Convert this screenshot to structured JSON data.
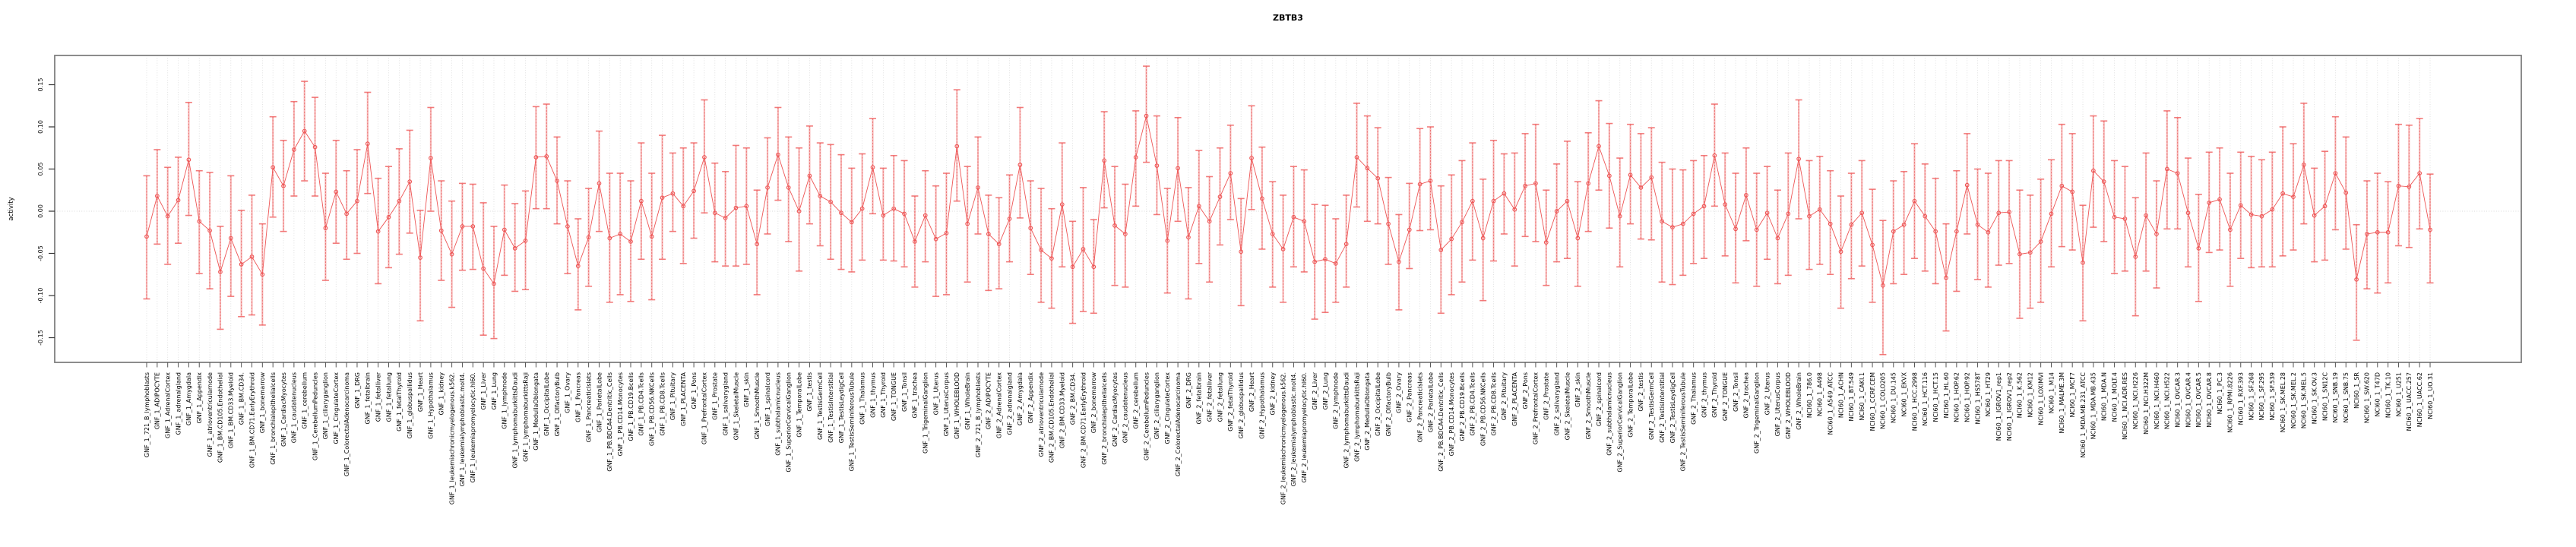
{
  "title": "ZBTB3",
  "y_axis": {
    "label": "activity",
    "ticks": [
      "0.15",
      "0.10",
      "0.05",
      "0.00",
      "-0.05",
      "-0.10",
      "-0.15"
    ],
    "tick_values": [
      0.15,
      0.1,
      0.05,
      0.0,
      -0.05,
      -0.1,
      -0.15
    ]
  },
  "colors": {
    "point": "#ee5555",
    "line": "#ee5555",
    "errorbar_pale": "rgba(244,140,140,0.60)",
    "errorbar_dash": "rgba(230,60,60,0.55)",
    "errorbar_cap": "rgba(240,100,100,0.85)",
    "frame": "#7f7f7f",
    "grid": "#d9d9d9",
    "tick": "#555555"
  },
  "chart_data": {
    "type": "scatter",
    "subtype": "points-with-error-bars-connected-by-line",
    "title": "ZBTB3",
    "xlabel": "",
    "ylabel": "activity",
    "ylim": [
      -0.185,
      0.185
    ],
    "grid": "vertical dotted gridline at each category; dotted horizontal line at y=0",
    "legend": "none",
    "n_points": 218,
    "categories": [
      "GNF_1_721_B_lymphoblasts",
      "GNF_1_ADIPOCYTE",
      "GNF_1_AdrenalCortex",
      "GNF_1_adrenalgland",
      "GNF_1_Amygdala",
      "GNF_1_Appendix",
      "GNF_1_atrioventricularnode",
      "GNF_1_BM.CD105.Endothelial",
      "GNF_1_BM.CD33.Myeloid",
      "GNF_1_BM.CD34.",
      "GNF_1_BM.CD71.EarlyErythroid",
      "GNF_1_bonemarrow",
      "GNF_1_bronchialepithelialcells",
      "GNF_1_CardiacMyocytes",
      "GNF_1_caudatenucleus",
      "GNF_1_cerebellum",
      "GNF_1_CerebellumPeduncles",
      "GNF_1_ciliaryganglion",
      "GNF_1_CingulateCortex",
      "GNF_1_ColorectalAdenocarcinoma",
      "GNF_1_DRG",
      "GNF_1_fetalbrain",
      "GNF_1_fetalliver",
      "GNF_1_fetallung",
      "GNF_1_fetalThyroid",
      "GNF_1_globuspallidus",
      "GNF_1_Heart",
      "GNF_1_Hypothalamus",
      "GNF_1_kidney",
      "GNF_1_leukemiachronicmyelogenous.k562.",
      "GNF_1_leukemialymphoblastic.molt4.",
      "GNF_1_leukemiapromyelocytic.hl60.",
      "GNF_1_Liver",
      "GNF_1_Lung",
      "GNF_1_lymphnode",
      "GNF_1_lymphomaburkittsDaudi",
      "GNF_1_lymphomaburkittsRaji",
      "GNF_1_MedullaOblongata",
      "GNF_1_OccipitalLobe",
      "GNF_1_OlfactoryBulb",
      "GNF_1_Ovary",
      "GNF_1_Pancreas",
      "GNF_1_PancreaticIslets",
      "GNF_1_ParietalLobe",
      "GNF_1_PB.BDCA4.Dentritic_Cells",
      "GNF_1_PB.CD14.Monocytes",
      "GNF_1_PB.CD19.Bcells",
      "GNF_1_PB.CD4.Tcells",
      "GNF_1_PB.CD56.NKCells",
      "GNF_1_PB.CD8.Tcells",
      "GNF_1_Pituitary",
      "GNF_1_PLACENTA",
      "GNF_1_Pons",
      "GNF_1_PrefrontalCortex",
      "GNF_1_Prostate",
      "GNF_1_salivarygland",
      "GNF_1_SkeletalMuscle",
      "GNF_1_skin",
      "GNF_1_SmoothMuscle",
      "GNF_1_spinalcord",
      "GNF_1_subthalamicnucleus",
      "GNF_1_SuperiorCervicalGanglion",
      "GNF_1_TemporalLobe",
      "GNF_1_testis",
      "GNF_1_TestisGermCell",
      "GNF_1_TestisInterstitial",
      "GNF_1_TestisLeydigCell",
      "GNF_1_TestisSeminiferousTubule",
      "GNF_1_Thalamus",
      "GNF_1_thymus",
      "GNF_1_Thyroid",
      "GNF_1_TONGUE",
      "GNF_1_Tonsil",
      "GNF_1_trachea",
      "GNF_1_TrigeminalGanglion",
      "GNF_1_Uterus",
      "GNF_1_UterusCorpus",
      "GNF_1_WHOLEBLOOD",
      "GNF_1_WholeBrain",
      "GNF_2_721_B_lymphoblasts",
      "GNF_2_ADIPOCYTE",
      "GNF_2_AdrenalCortex",
      "GNF_2_adrenalgland",
      "GNF_2_Amygdala",
      "GNF_2_Appendix",
      "GNF_2_atrioventricularnode",
      "GNF_2_BM.CD105.Endothelial",
      "GNF_2_BM.CD33.Myeloid",
      "GNF_2_BM.CD34.",
      "GNF_2_BM.CD71.EarlyErythroid",
      "GNF_2_bonemarrow",
      "GNF_2_bronchialepithelialcells",
      "GNF_2_CardiacMyocytes",
      "GNF_2_caudatenucleus",
      "GNF_2_cerebellum",
      "GNF_2_CerebellumPeduncles",
      "GNF_2_ciliaryganglion",
      "GNF_2_CingulateCortex",
      "GNF_2_ColorectalAdenocarcinoma",
      "GNF_2_DRG",
      "GNF_2_fetalbrain",
      "GNF_2_fetalliver",
      "GNF_2_fetallung",
      "GNF_2_fetalThyroid",
      "GNF_2_globuspallidus",
      "GNF_2_Heart",
      "GNF_2_Hypothalamus",
      "GNF_2_kidney",
      "GNF_2_leukemiachronicmyelogenous.k562.",
      "GNF_2_leukemialymphoblastic.molt4.",
      "GNF_2_leukemiapromyelocytic.hl60.",
      "GNF_2_Liver",
      "GNF_2_Lung",
      "GNF_2_lymphnode",
      "GNF_2_lymphomaburkittsDaudi",
      "GNF_2_lymphomaburkittsRaji",
      "GNF_2_MedullaOblongata",
      "GNF_2_OccipitalLobe",
      "GNF_2_OlfactoryBulb",
      "GNF_2_Ovary",
      "GNF_2_Pancreas",
      "GNF_2_PancreaticIslets",
      "GNF_2_ParietalLobe",
      "GNF_2_PB.BDCA4.Dentritic_Cells",
      "GNF_2_PB.CD14.Monocytes",
      "GNF_2_PB.CD19.Bcells",
      "GNF_2_PB.CD4.Tcells",
      "GNF_2_PB.CD56.NKCells",
      "GNF_2_PB.CD8.Tcells",
      "GNF_2_Pituitary",
      "GNF_2_PLACENTA",
      "GNF_2_Pons",
      "GNF_2_PrefrontalCortex",
      "GNF_2_Prostate",
      "GNF_2_salivarygland",
      "GNF_2_SkeletalMuscle",
      "GNF_2_skin",
      "GNF_2_SmoothMuscle",
      "GNF_2_spinalcord",
      "GNF_2_subthalamicnucleus",
      "GNF_2_SuperiorCervicalGanglion",
      "GNF_2_TemporalLobe",
      "GNF_2_testis",
      "GNF_2_TestisGermCell",
      "GNF_2_TestisInterstitial",
      "GNF_2_TestisLeydigCell",
      "GNF_2_TestisSeminiferousTubule",
      "GNF_2_Thalamus",
      "GNF_2_thymus",
      "GNF_2_Thyroid",
      "GNF_2_TONGUE",
      "GNF_2_Tonsil",
      "GNF_2_trachea",
      "GNF_2_TrigeminalGanglion",
      "GNF_2_Uterus",
      "GNF_2_UterusCorpus",
      "GNF_2_WHOLEBLOOD",
      "GNF_2_WholeBrain",
      "NCI60_1_786.0",
      "NCI60_1_A498",
      "NCI60_1_A549_ATCC",
      "NCI60_1_ACHN",
      "NCI60_1_BT.549",
      "NCI60_1_CAKI.1",
      "NCI60_1_CCRF.CEM",
      "NCI60_1_COLO205",
      "NCI60_1_DU.145",
      "NCI60_1_EKVX",
      "NCI60_1_HCC.2998",
      "NCI60_1_HCT.116",
      "NCI60_1_HCT.15",
      "NCI60_1_HL.60",
      "NCI60_1_HOP.62",
      "NCI60_1_HOP.92",
      "NCI60_1_HS578T",
      "NCI60_1_HT29",
      "NCI60_1_IGROV1_rep1",
      "NCI60_1_IGROV1_rep2",
      "NCI60_1_K.562",
      "NCI60_1_KM12",
      "NCI60_1_LOXIMVI",
      "NCI60_1_M14",
      "NCI60_1_MALME.3M",
      "NCI60_1_MCF7",
      "NCI60_1_MDA.MB.231_ATCC",
      "NCI60_1_MDA.MB.435",
      "NCI60_1_MDA.N",
      "NCI60_1_MOLT.4",
      "NCI60_1_NCI.ADR.RES",
      "NCI60_1_NCI.H226",
      "NCI60_1_NCI.H322M",
      "NCI60_1_NCI.H460",
      "NCI60_1_NCI.H522",
      "NCI60_1_OVCAR.3",
      "NCI60_1_OVCAR.4",
      "NCI60_1_OVCAR.5",
      "NCI60_1_OVCAR.8",
      "NCI60_1_PC.3",
      "NCI60_1_RPMI.8226",
      "NCI60_1_RXF.393",
      "NCI60_1_SF.268",
      "NCI60_1_SF.295",
      "NCI60_1_SF.539",
      "NCI60_1_SK.MEL.28",
      "NCI60_1_SK.MEL.2",
      "NCI60_1_SK.MEL.5",
      "NCI60_1_SK.OV.3",
      "NCI60_1_SN12C",
      "NCI60_1_SNB.19",
      "NCI60_1_SNB.75",
      "NCI60_1_SR",
      "NCI60_1_SW.620",
      "NCI60_1_T47D",
      "NCI60_1_TK.10",
      "NCI60_1_U251",
      "NCI60_1_UACC.257",
      "NCI60_1_UACC.62",
      "NCI60_1_UO.31"
    ],
    "series": [
      {
        "name": "activity",
        "values": [
          -0.03,
          0.018,
          -0.006,
          0.013,
          0.061,
          -0.012,
          -0.023,
          -0.072,
          -0.032,
          -0.063,
          -0.054,
          -0.075,
          0.052,
          0.03,
          0.073,
          0.095,
          0.076,
          -0.02,
          0.023,
          -0.003,
          0.012,
          0.08,
          -0.024,
          -0.007,
          0.012,
          0.035,
          -0.055,
          0.063,
          -0.023,
          -0.051,
          -0.018,
          -0.018,
          -0.068,
          -0.086,
          -0.022,
          -0.044,
          -0.035,
          0.064,
          0.065,
          0.036,
          -0.018,
          -0.065,
          -0.031,
          0.033,
          -0.032,
          -0.027,
          -0.036,
          0.012,
          -0.03,
          0.016,
          0.021,
          0.006,
          0.024,
          0.064,
          -0.002,
          -0.008,
          0.004,
          0.006,
          -0.039,
          0.028,
          0.067,
          0.028,
          0.0,
          0.042,
          0.018,
          0.011,
          -0.002,
          -0.013,
          0.003,
          0.052,
          -0.005,
          0.003,
          -0.003,
          -0.036,
          -0.005,
          -0.033,
          -0.026,
          0.077,
          -0.015,
          0.028,
          -0.027,
          -0.039,
          -0.009,
          0.055,
          -0.02,
          -0.046,
          -0.056,
          0.008,
          -0.066,
          -0.045,
          -0.066,
          0.06,
          -0.017,
          -0.027,
          0.064,
          0.113,
          0.054,
          -0.035,
          0.051,
          -0.031,
          0.006,
          -0.012,
          0.017,
          0.045,
          -0.048,
          0.063,
          0.015,
          -0.027,
          -0.045,
          -0.007,
          -0.012,
          -0.06,
          -0.057,
          -0.062,
          -0.039,
          0.064,
          0.051,
          0.039,
          -0.015,
          -0.06,
          -0.022,
          0.032,
          0.036,
          -0.046,
          -0.033,
          -0.013,
          0.012,
          -0.032,
          0.012,
          0.021,
          0.002,
          0.03,
          0.033,
          -0.037,
          0.0,
          0.012,
          -0.032,
          0.033,
          0.077,
          0.042,
          -0.006,
          0.043,
          0.028,
          0.04,
          -0.012,
          -0.019,
          -0.015,
          -0.003,
          0.006,
          0.066,
          0.008,
          -0.021,
          0.019,
          -0.022,
          -0.002,
          -0.032,
          -0.003,
          0.062,
          -0.006,
          0.002,
          -0.015,
          -0.048,
          -0.016,
          -0.002,
          -0.04,
          -0.088,
          -0.024,
          -0.016,
          0.012,
          -0.006,
          -0.024,
          -0.079,
          -0.024,
          0.031,
          -0.016,
          -0.025,
          -0.002,
          -0.001,
          -0.051,
          -0.049,
          -0.036,
          -0.003,
          0.03,
          0.023,
          -0.061,
          0.048,
          0.035,
          -0.007,
          -0.009,
          -0.054,
          -0.005,
          -0.027,
          0.05,
          0.045,
          -0.002,
          -0.044,
          0.01,
          0.014,
          -0.022,
          0.007,
          -0.004,
          -0.006,
          0.002,
          0.021,
          0.017,
          0.055,
          -0.005,
          0.006,
          0.045,
          0.022,
          -0.081,
          -0.027,
          -0.025,
          -0.025,
          0.03,
          0.029,
          0.045,
          -0.022
        ],
        "lower": [
          -0.104,
          -0.039,
          -0.063,
          -0.038,
          -0.005,
          -0.074,
          -0.092,
          -0.14,
          -0.101,
          -0.125,
          -0.123,
          -0.135,
          -0.007,
          -0.024,
          0.018,
          0.036,
          0.018,
          -0.082,
          -0.038,
          -0.057,
          -0.05,
          0.021,
          -0.086,
          -0.067,
          -0.051,
          -0.026,
          -0.13,
          0.0,
          -0.082,
          -0.114,
          -0.07,
          -0.069,
          -0.147,
          -0.151,
          -0.076,
          -0.095,
          -0.093,
          0.003,
          0.003,
          -0.015,
          -0.074,
          -0.117,
          -0.089,
          -0.024,
          -0.108,
          -0.099,
          -0.107,
          -0.057,
          -0.105,
          -0.057,
          -0.024,
          -0.062,
          -0.032,
          -0.002,
          -0.06,
          -0.065,
          -0.065,
          -0.063,
          -0.099,
          -0.027,
          0.013,
          -0.036,
          -0.071,
          -0.015,
          -0.041,
          -0.057,
          -0.069,
          -0.072,
          -0.058,
          -0.003,
          -0.058,
          -0.059,
          -0.066,
          -0.09,
          -0.06,
          -0.101,
          -0.099,
          0.012,
          -0.084,
          -0.027,
          -0.094,
          -0.092,
          -0.06,
          -0.008,
          -0.075,
          -0.108,
          -0.115,
          -0.066,
          -0.133,
          -0.119,
          -0.121,
          0.004,
          -0.088,
          -0.09,
          0.006,
          0.058,
          -0.004,
          -0.097,
          -0.012,
          -0.104,
          -0.062,
          -0.084,
          -0.04,
          -0.01,
          -0.112,
          0.002,
          -0.045,
          -0.09,
          -0.108,
          -0.066,
          -0.072,
          -0.128,
          -0.12,
          -0.108,
          -0.09,
          0.005,
          -0.012,
          -0.015,
          -0.063,
          -0.117,
          -0.068,
          -0.023,
          -0.022,
          -0.121,
          -0.099,
          -0.084,
          -0.058,
          -0.106,
          -0.059,
          -0.027,
          -0.065,
          -0.03,
          -0.036,
          -0.088,
          -0.06,
          -0.056,
          -0.089,
          -0.024,
          0.025,
          -0.02,
          -0.066,
          -0.015,
          -0.033,
          -0.034,
          -0.084,
          -0.087,
          -0.076,
          -0.062,
          -0.056,
          0.006,
          -0.053,
          -0.085,
          -0.035,
          -0.089,
          -0.057,
          -0.086,
          -0.076,
          -0.009,
          -0.069,
          -0.063,
          -0.075,
          -0.115,
          -0.08,
          -0.065,
          -0.108,
          -0.17,
          -0.086,
          -0.075,
          -0.056,
          -0.071,
          -0.086,
          -0.142,
          -0.095,
          -0.027,
          -0.081,
          -0.09,
          -0.064,
          -0.062,
          -0.127,
          -0.115,
          -0.108,
          -0.066,
          -0.042,
          -0.046,
          -0.13,
          -0.019,
          -0.036,
          -0.074,
          -0.071,
          -0.124,
          -0.071,
          -0.091,
          -0.021,
          -0.021,
          -0.066,
          -0.107,
          -0.049,
          -0.046,
          -0.089,
          -0.056,
          -0.067,
          -0.066,
          -0.066,
          -0.053,
          -0.046,
          -0.015,
          -0.06,
          -0.058,
          -0.022,
          -0.045,
          -0.153,
          -0.092,
          -0.097,
          -0.085,
          -0.041,
          -0.043,
          -0.021,
          -0.085
        ],
        "upper": [
          0.042,
          0.073,
          0.052,
          0.064,
          0.129,
          0.048,
          0.046,
          -0.018,
          0.042,
          0.001,
          0.019,
          -0.015,
          0.112,
          0.084,
          0.13,
          0.154,
          0.135,
          0.045,
          0.084,
          0.048,
          0.073,
          0.141,
          0.039,
          0.053,
          0.074,
          0.096,
          0.001,
          0.123,
          0.036,
          0.012,
          0.033,
          0.032,
          0.01,
          -0.018,
          0.031,
          0.009,
          0.024,
          0.124,
          0.127,
          0.088,
          0.036,
          -0.009,
          0.027,
          0.095,
          0.045,
          0.045,
          0.036,
          0.081,
          0.045,
          0.09,
          0.069,
          0.075,
          0.081,
          0.132,
          0.057,
          0.047,
          0.078,
          0.075,
          0.025,
          0.087,
          0.123,
          0.088,
          0.075,
          0.101,
          0.081,
          0.079,
          0.067,
          0.051,
          0.068,
          0.11,
          0.051,
          0.066,
          0.06,
          0.018,
          0.048,
          0.03,
          0.045,
          0.144,
          0.053,
          0.088,
          0.019,
          0.016,
          0.043,
          0.123,
          0.036,
          0.027,
          0.003,
          0.081,
          -0.012,
          0.028,
          -0.01,
          0.118,
          0.053,
          0.032,
          0.119,
          0.172,
          0.113,
          0.027,
          0.111,
          0.028,
          0.072,
          0.041,
          0.075,
          0.102,
          0.015,
          0.125,
          0.076,
          0.035,
          0.019,
          0.053,
          0.049,
          0.008,
          0.007,
          -0.009,
          0.019,
          0.128,
          0.113,
          0.099,
          0.04,
          -0.004,
          0.033,
          0.098,
          0.1,
          0.03,
          0.043,
          0.06,
          0.081,
          0.038,
          0.084,
          0.068,
          0.069,
          0.092,
          0.103,
          0.025,
          0.056,
          0.083,
          0.035,
          0.093,
          0.131,
          0.104,
          0.063,
          0.103,
          0.092,
          0.099,
          0.058,
          0.05,
          0.049,
          0.06,
          0.066,
          0.127,
          0.069,
          0.045,
          0.075,
          0.045,
          0.053,
          0.025,
          0.069,
          0.132,
          0.06,
          0.065,
          0.048,
          0.018,
          0.045,
          0.06,
          0.026,
          -0.011,
          0.036,
          0.047,
          0.08,
          0.056,
          0.039,
          -0.015,
          0.048,
          0.092,
          0.05,
          0.045,
          0.06,
          0.06,
          0.025,
          0.019,
          0.038,
          0.061,
          0.103,
          0.092,
          0.007,
          0.113,
          0.107,
          0.06,
          0.053,
          0.016,
          0.069,
          0.036,
          0.119,
          0.111,
          0.063,
          0.02,
          0.07,
          0.075,
          0.045,
          0.07,
          0.065,
          0.061,
          0.07,
          0.1,
          0.08,
          0.128,
          0.051,
          0.071,
          0.112,
          0.088,
          -0.016,
          0.036,
          0.045,
          0.035,
          0.103,
          0.102,
          0.11,
          0.044
        ]
      }
    ]
  }
}
